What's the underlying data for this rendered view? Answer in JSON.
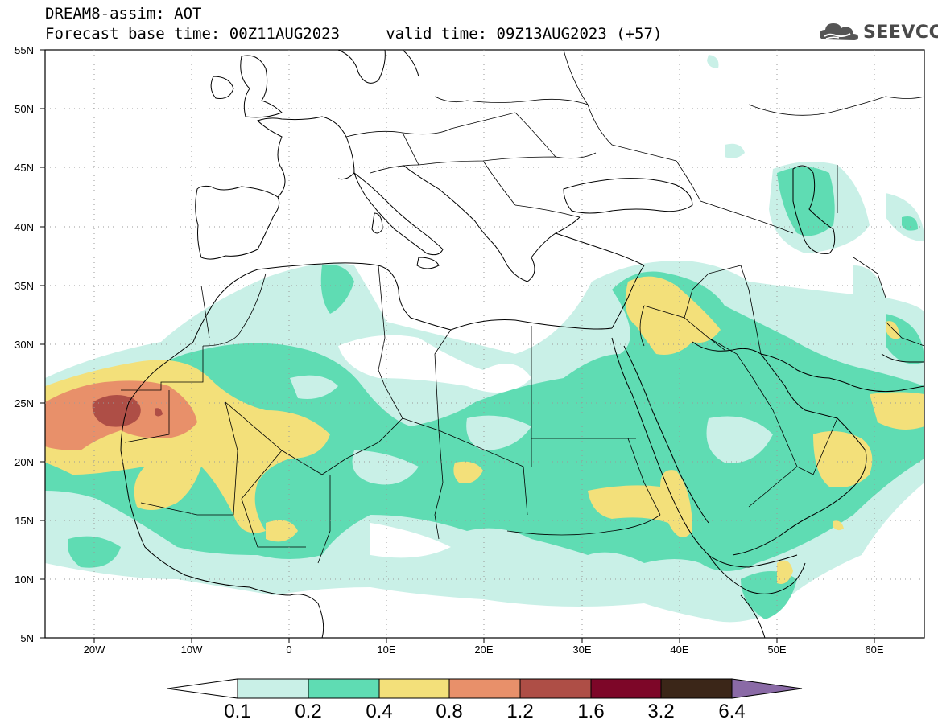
{
  "header": {
    "line1": "DREAM8-assim: AOT",
    "line2": "Forecast base time: 00Z11AUG2023     valid time: 09Z13AUG2023 (+57)"
  },
  "logo": {
    "text": "SEEVCCC",
    "icon": "cloud-icon"
  },
  "map": {
    "lat_ticks": [
      "55N",
      "50N",
      "45N",
      "40N",
      "35N",
      "30N",
      "25N",
      "20N",
      "15N",
      "10N",
      "5N"
    ],
    "lon_ticks": [
      "20W",
      "10W",
      "0",
      "10E",
      "20E",
      "30E",
      "40E",
      "50E",
      "60E"
    ],
    "lon_range": [
      -25,
      65
    ],
    "lat_range": [
      5,
      55
    ]
  },
  "colorbar": {
    "labels": [
      "0.1",
      "0.2",
      "0.4",
      "0.8",
      "1.2",
      "1.6",
      "3.2",
      "6.4"
    ],
    "colors": [
      "#ffffff",
      "#c9f0e7",
      "#5fdcb3",
      "#f3e07a",
      "#e8906a",
      "#ae4e46",
      "#7d0628",
      "#3b2618",
      "#8a6aa6"
    ]
  },
  "colors": {
    "level_0_1": "#c9f0e7",
    "level_0_2": "#5fdcb3",
    "level_0_4": "#f3e07a",
    "level_0_8": "#e8906a",
    "level_1_2": "#ae4e46",
    "coast": "#000000"
  }
}
